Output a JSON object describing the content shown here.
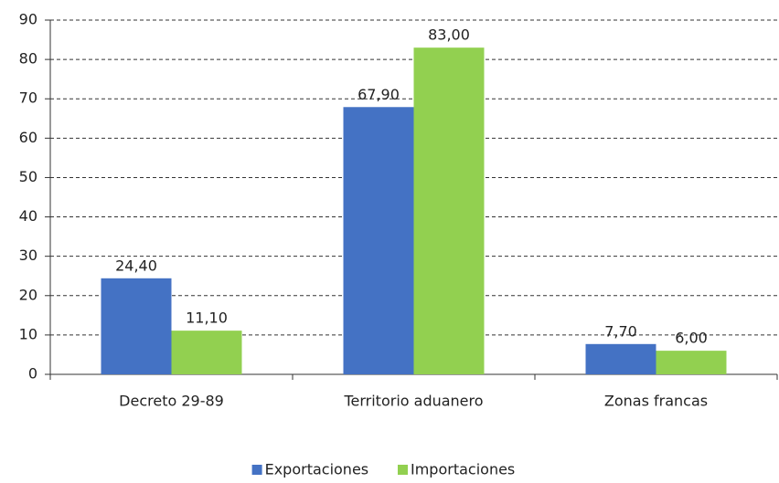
{
  "chart_data": {
    "type": "bar",
    "categories": [
      "Decreto 29-89",
      "Territorio aduanero",
      "Zonas francas"
    ],
    "series": [
      {
        "name": "Exportaciones",
        "color": "#4472c4",
        "values": [
          24.4,
          67.9,
          7.7
        ],
        "value_labels": [
          "24,40",
          "67,90",
          "7,70"
        ]
      },
      {
        "name": "Importaciones",
        "color": "#92d050",
        "values": [
          11.1,
          83.0,
          6.0
        ],
        "value_labels": [
          "11,10",
          "83,00",
          "6,00"
        ]
      }
    ],
    "ylim": [
      0,
      90
    ],
    "yticks": [
      0,
      10,
      20,
      30,
      40,
      50,
      60,
      70,
      80,
      90
    ],
    "grid": true,
    "legend": "bottom"
  }
}
